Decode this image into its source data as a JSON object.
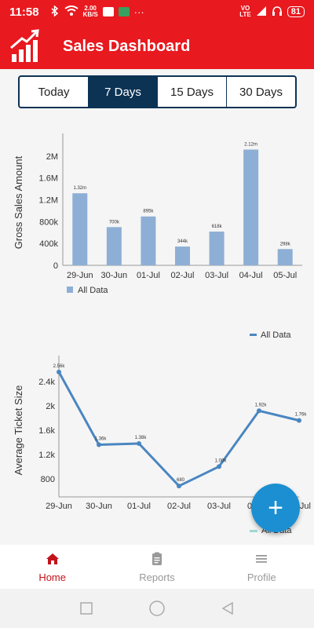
{
  "status_bar": {
    "time": "11:58",
    "net_speed": "2.00",
    "net_unit": "KB/S",
    "extra_dots": "···",
    "vo": "VO",
    "lte": "LTE",
    "battery": "81"
  },
  "app_bar": {
    "title": "Sales Dashboard",
    "logo_icon": "bar-chart-trend-icon"
  },
  "segment": {
    "tabs": [
      "Today",
      "7 Days",
      "15 Days",
      "30 Days"
    ],
    "selected": "7 Days"
  },
  "fab": {
    "icon": "plus-icon",
    "label": "+"
  },
  "bottom_nav": {
    "items": [
      {
        "label": "Home",
        "icon": "home-icon"
      },
      {
        "label": "Reports",
        "icon": "clipboard-icon"
      },
      {
        "label": "Profile",
        "icon": "menu-icon"
      }
    ],
    "active": "Home"
  },
  "colors": {
    "brand": "#e8191f",
    "segment_active": "#0d3354",
    "bar": "#8eafd5",
    "line": "#4a86c0",
    "fab": "#1b8fd1",
    "nav_active": "#c2121b",
    "legend_teal": "#9fd8d1"
  },
  "chart_data": [
    {
      "type": "bar",
      "categories": [
        "29-Jun",
        "30-Jun",
        "01-Jul",
        "02-Jul",
        "03-Jul",
        "04-Jul",
        "05-Jul"
      ],
      "values": [
        1320000,
        700000,
        895000,
        344000,
        618000,
        2120000,
        298000
      ],
      "data_labels": [
        "1.32m",
        "700k",
        "895k",
        "344k",
        "618k",
        "2.12m",
        "298k"
      ],
      "yticks": [
        "0",
        "400k",
        "800k",
        "1.2M",
        "1.6M",
        "2M"
      ],
      "ylim": [
        0,
        2300000
      ],
      "ylabel": "Gross Sales Amount",
      "xlabel": "",
      "series": [
        {
          "name": "All Data"
        }
      ],
      "legend_position": "bottom-left",
      "grid": false
    },
    {
      "type": "line",
      "categories": [
        "29-Jun",
        "30-Jun",
        "01-Jul",
        "02-Jul",
        "03-Jul",
        "04-Jul",
        "05-Jul"
      ],
      "values": [
        2560,
        1360,
        1380,
        680,
        1000,
        1920,
        1760
      ],
      "data_labels": [
        "2.56k",
        "1.36k",
        "1.38k",
        "680",
        "1.00k",
        "1.92k",
        "1.76k"
      ],
      "yticks": [
        "800",
        "1.2k",
        "1.6k",
        "2k",
        "2.4k"
      ],
      "ylim": [
        500,
        2700
      ],
      "ylabel": "Average Ticket Size",
      "xlabel": "",
      "series": [
        {
          "name": "All Data"
        }
      ],
      "legend_position": "top-right",
      "grid": false
    }
  ],
  "partial_legend": {
    "label": "All Data"
  }
}
